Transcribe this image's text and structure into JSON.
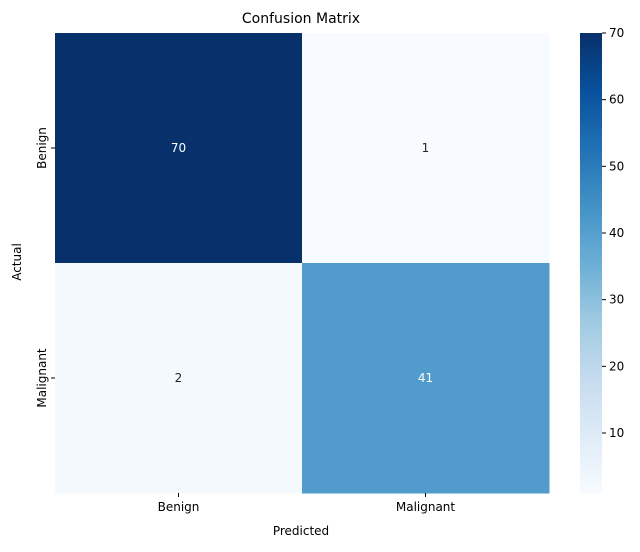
{
  "chart_data": {
    "type": "heatmap",
    "title": "Confusion Matrix",
    "xlabel": "Predicted",
    "ylabel": "Actual",
    "x_categories": [
      "Benign",
      "Malignant"
    ],
    "y_categories": [
      "Benign",
      "Malignant"
    ],
    "values": [
      [
        70,
        1
      ],
      [
        2,
        41
      ]
    ],
    "colormap": "Blues",
    "colorbar": {
      "min": 1,
      "max": 70,
      "ticks": [
        10,
        20,
        30,
        40,
        50,
        60,
        70
      ]
    },
    "grid": false
  }
}
